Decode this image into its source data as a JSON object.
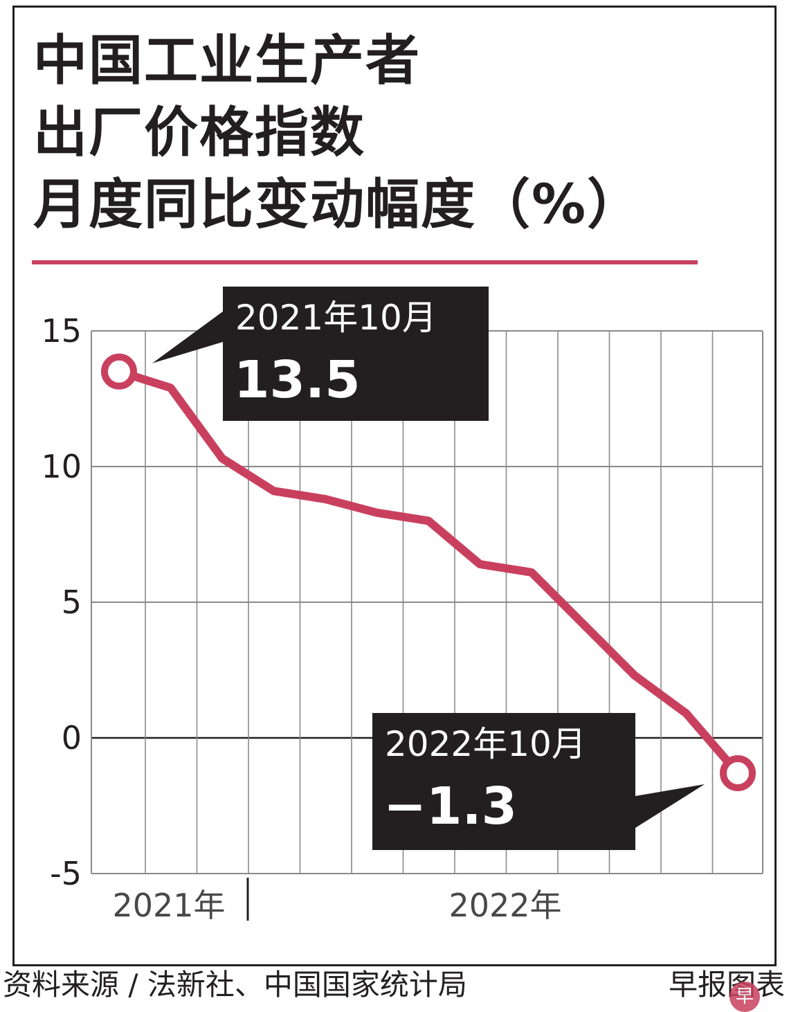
{
  "title_lines": [
    "中国工业生产者",
    "出厂价格指数",
    "月度同比变动幅度（%）"
  ],
  "colors": {
    "line": "#c9405f",
    "callout_bg": "#231f20",
    "callout_text": "#ffffff",
    "grid": "#8a8888"
  },
  "chart_data": {
    "type": "line",
    "title": "中国工业生产者出厂价格指数月度同比变动幅度（%）",
    "x": [
      "2021-10",
      "2021-11",
      "2021-12",
      "2022-01",
      "2022-02",
      "2022-03",
      "2022-04",
      "2022-05",
      "2022-06",
      "2022-07",
      "2022-08",
      "2022-09",
      "2022-10"
    ],
    "series": [
      {
        "values": [
          13.5,
          12.9,
          10.3,
          9.1,
          8.8,
          8.3,
          8.0,
          6.4,
          6.1,
          4.2,
          2.3,
          0.9,
          -1.3
        ]
      }
    ],
    "ylim": [
      -5,
      15
    ],
    "yticks": [
      "15",
      "10",
      "5",
      "0",
      "-5"
    ],
    "year_labels": [
      "2021年",
      "2022年"
    ],
    "grid": true,
    "annotations": [
      {
        "date": "2021年10月",
        "value": "13.5"
      },
      {
        "date": "2022年10月",
        "value": "−1.3"
      }
    ]
  },
  "footer": {
    "source": "资料来源 / 法新社、中国国家统计局",
    "credit": "早报图表",
    "logo": "早"
  }
}
